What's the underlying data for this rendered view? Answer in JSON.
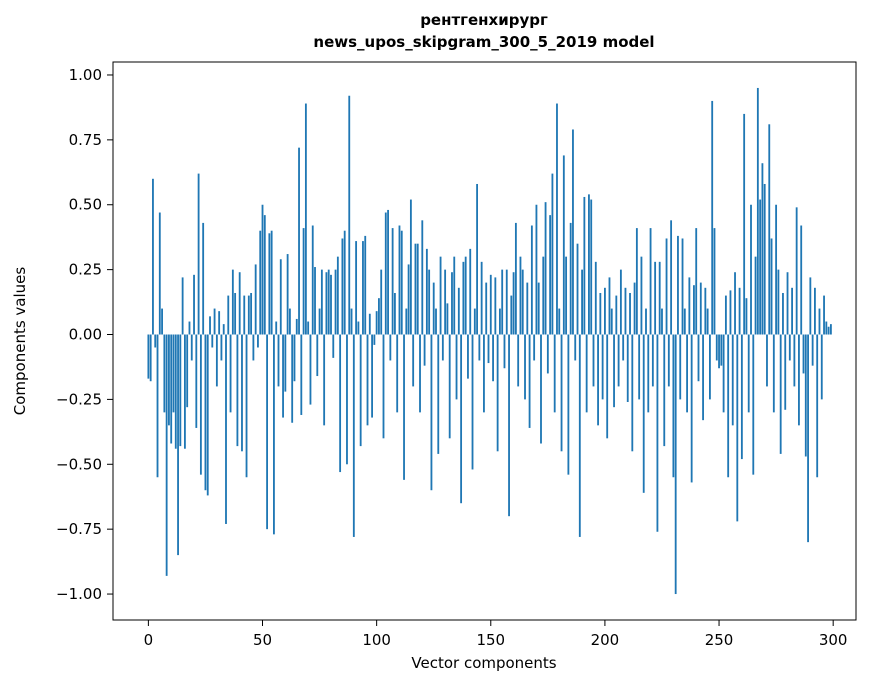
{
  "figure": {
    "title_lines": [
      "рентгенхирург",
      "news_upos_skipgram_300_5_2019 model"
    ],
    "xlabel": "Vector components",
    "ylabel": "Components values"
  },
  "chart_data": {
    "type": "bar",
    "title": "рентгенхирург\nnews_upos_skipgram_300_5_2019 model",
    "xlabel": "Vector components",
    "ylabel": "Components values",
    "bar_color": "#1f77b4",
    "grid": false,
    "legend": "none",
    "xlim": [
      -15.5,
      310
    ],
    "ylim": [
      -1.1,
      1.05
    ],
    "x_ticks": [
      0,
      50,
      100,
      150,
      200,
      250,
      300
    ],
    "x_tick_labels": [
      "0",
      "50",
      "100",
      "150",
      "200",
      "250",
      "300"
    ],
    "y_ticks": [
      1.0,
      0.75,
      0.5,
      0.25,
      0.0,
      -0.25,
      -0.5,
      -0.75,
      -1.0
    ],
    "y_tick_labels": [
      "1.00",
      "0.75",
      "0.50",
      "0.25",
      "0.00",
      "−0.25",
      "−0.50",
      "−0.75",
      "−1.00"
    ],
    "values": [
      -0.17,
      -0.18,
      0.6,
      -0.05,
      -0.55,
      0.47,
      0.1,
      -0.3,
      -0.93,
      -0.35,
      -0.42,
      -0.3,
      -0.44,
      -0.85,
      -0.43,
      0.22,
      -0.44,
      -0.28,
      0.05,
      -0.1,
      0.23,
      -0.36,
      0.62,
      -0.54,
      0.43,
      -0.6,
      -0.62,
      0.07,
      -0.05,
      0.1,
      -0.2,
      0.09,
      -0.1,
      0.04,
      -0.73,
      0.15,
      -0.3,
      0.25,
      0.16,
      -0.43,
      0.24,
      -0.45,
      0.15,
      -0.55,
      0.15,
      0.16,
      -0.1,
      0.27,
      -0.05,
      0.4,
      0.5,
      0.46,
      -0.75,
      0.39,
      0.4,
      -0.77,
      0.05,
      -0.2,
      0.29,
      -0.32,
      -0.22,
      0.31,
      0.1,
      -0.34,
      -0.18,
      0.06,
      0.72,
      -0.31,
      0.41,
      0.89,
      0.05,
      -0.27,
      0.42,
      0.26,
      -0.16,
      0.1,
      0.25,
      -0.35,
      0.24,
      0.25,
      0.23,
      -0.09,
      0.25,
      0.3,
      -0.53,
      0.37,
      0.4,
      -0.5,
      0.92,
      0.1,
      -0.78,
      0.36,
      0.05,
      -0.43,
      0.36,
      0.38,
      -0.35,
      0.08,
      -0.32,
      -0.04,
      0.09,
      0.14,
      0.25,
      -0.4,
      0.47,
      0.48,
      -0.1,
      0.41,
      0.16,
      -0.3,
      0.42,
      0.4,
      -0.56,
      0.1,
      0.27,
      0.52,
      -0.2,
      0.35,
      0.35,
      -0.3,
      0.44,
      -0.12,
      0.33,
      0.25,
      -0.6,
      0.2,
      0.1,
      -0.46,
      0.3,
      -0.1,
      0.25,
      0.12,
      -0.4,
      0.24,
      0.3,
      -0.25,
      0.18,
      -0.65,
      0.28,
      0.3,
      -0.17,
      0.33,
      -0.52,
      0.1,
      0.58,
      -0.1,
      0.28,
      -0.3,
      0.2,
      -0.11,
      0.23,
      -0.18,
      0.22,
      -0.45,
      0.1,
      0.25,
      -0.13,
      0.25,
      -0.7,
      0.15,
      0.24,
      0.43,
      -0.2,
      0.3,
      0.25,
      -0.25,
      0.2,
      -0.36,
      0.42,
      -0.1,
      0.5,
      0.2,
      -0.42,
      0.3,
      0.51,
      -0.15,
      0.46,
      0.62,
      -0.3,
      0.89,
      0.1,
      -0.45,
      0.69,
      0.3,
      -0.54,
      0.43,
      0.79,
      -0.1,
      0.35,
      -0.78,
      0.25,
      0.53,
      -0.3,
      0.54,
      0.52,
      -0.2,
      0.28,
      -0.35,
      0.16,
      -0.25,
      0.18,
      -0.4,
      0.22,
      0.1,
      -0.28,
      0.15,
      -0.2,
      0.25,
      -0.1,
      0.18,
      -0.26,
      0.16,
      -0.45,
      0.2,
      0.41,
      -0.25,
      0.3,
      -0.61,
      0.1,
      -0.3,
      0.41,
      -0.2,
      0.28,
      -0.76,
      0.28,
      0.1,
      -0.43,
      0.37,
      -0.2,
      0.44,
      -0.55,
      -1.0,
      0.38,
      -0.25,
      0.37,
      0.1,
      -0.3,
      0.22,
      -0.57,
      0.19,
      0.41,
      -0.18,
      0.2,
      -0.33,
      0.18,
      0.1,
      -0.25,
      0.9,
      0.41,
      -0.1,
      -0.13,
      -0.12,
      -0.3,
      0.15,
      -0.55,
      0.17,
      -0.35,
      0.24,
      -0.72,
      0.18,
      -0.48,
      0.85,
      0.14,
      -0.3,
      0.5,
      -0.54,
      0.3,
      0.95,
      0.52,
      0.66,
      0.58,
      -0.2,
      0.81,
      0.37,
      -0.3,
      0.5,
      0.25,
      -0.46,
      0.16,
      -0.29,
      0.24,
      -0.1,
      0.18,
      -0.2,
      0.49,
      -0.35,
      0.42,
      -0.15,
      -0.47,
      -0.8,
      0.22,
      -0.12,
      0.18,
      -0.55,
      0.1,
      -0.25,
      0.15,
      0.05,
      0.03,
      0.04
    ]
  }
}
